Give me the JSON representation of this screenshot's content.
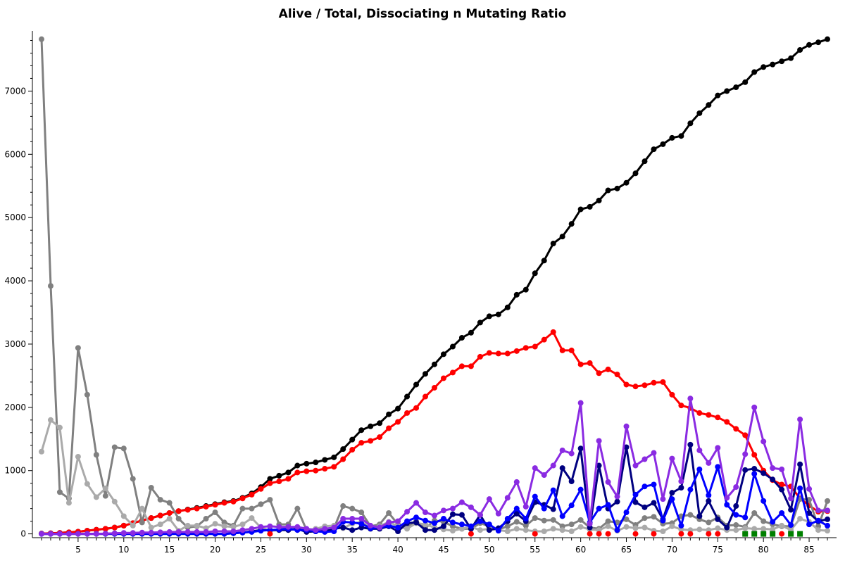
{
  "chart_data": {
    "type": "line",
    "title": "Alive / Total, Dissociating n Mutating Ratio",
    "xlabel": "",
    "ylabel": "",
    "xlim": [
      0,
      88
    ],
    "ylim": [
      -60,
      7950
    ],
    "x_ticks": [
      5,
      10,
      15,
      20,
      25,
      30,
      35,
      40,
      45,
      50,
      55,
      60,
      65,
      70,
      75,
      80,
      85
    ],
    "y_ticks": [
      0,
      1000,
      2000,
      3000,
      4000,
      5000,
      6000,
      7000
    ],
    "grid": false,
    "legend": "none",
    "series": [
      {
        "color": "#000000",
        "marker": "circle",
        "x": [
          1,
          2,
          3,
          4,
          5,
          6,
          7,
          8,
          9,
          10,
          11,
          12,
          13,
          14,
          15,
          16,
          17,
          18,
          19,
          20,
          21,
          22,
          23,
          24,
          25,
          26,
          27,
          28,
          29,
          30,
          31,
          32,
          33,
          34,
          35,
          36,
          37,
          38,
          39,
          40,
          41,
          42,
          43,
          44,
          45,
          46,
          47,
          48,
          49,
          50,
          51,
          52,
          53,
          54,
          55,
          56,
          57,
          58,
          59,
          60,
          61,
          62,
          63,
          64,
          65,
          66,
          67,
          68,
          69,
          70,
          71,
          72,
          73,
          74,
          75,
          76,
          77,
          78,
          79,
          80,
          81,
          82,
          83,
          84,
          85,
          86,
          87
        ],
        "y": [
          5,
          10,
          15,
          25,
          35,
          50,
          65,
          80,
          100,
          130,
          170,
          210,
          250,
          290,
          330,
          360,
          385,
          410,
          440,
          470,
          500,
          520,
          570,
          640,
          740,
          870,
          920,
          970,
          1080,
          1110,
          1130,
          1170,
          1210,
          1340,
          1490,
          1640,
          1700,
          1750,
          1890,
          1980,
          2170,
          2360,
          2530,
          2680,
          2840,
          2960,
          3100,
          3180,
          3340,
          3440,
          3470,
          3580,
          3780,
          3860,
          4120,
          4320,
          4590,
          4700,
          4900,
          5130,
          5170,
          5270,
          5430,
          5460,
          5550,
          5700,
          5890,
          6080,
          6160,
          6260,
          6290,
          6490,
          6650,
          6780,
          6930,
          7000,
          7060,
          7140,
          7300,
          7380,
          7420,
          7470,
          7520,
          7650,
          7730,
          7770,
          7820
        ]
      },
      {
        "color": "#ff0000",
        "marker": "circle",
        "x": [
          1,
          2,
          3,
          4,
          5,
          6,
          7,
          8,
          9,
          10,
          11,
          12,
          13,
          14,
          15,
          16,
          17,
          18,
          19,
          20,
          21,
          22,
          23,
          24,
          25,
          26,
          27,
          28,
          29,
          30,
          31,
          32,
          33,
          34,
          35,
          36,
          37,
          38,
          39,
          40,
          41,
          42,
          43,
          44,
          45,
          46,
          47,
          48,
          49,
          50,
          51,
          52,
          53,
          54,
          55,
          56,
          57,
          58,
          59,
          60,
          61,
          62,
          63,
          64,
          65,
          66,
          67,
          68,
          69,
          70,
          71,
          72,
          73,
          74,
          75,
          76,
          77,
          78,
          79,
          80,
          81,
          82,
          83,
          84,
          85,
          86,
          87
        ],
        "y": [
          5,
          10,
          15,
          25,
          35,
          50,
          65,
          80,
          100,
          130,
          170,
          210,
          250,
          290,
          330,
          360,
          380,
          400,
          430,
          460,
          490,
          510,
          560,
          620,
          710,
          800,
          830,
          870,
          970,
          990,
          1000,
          1030,
          1060,
          1180,
          1330,
          1440,
          1470,
          1530,
          1670,
          1770,
          1910,
          1990,
          2170,
          2310,
          2460,
          2550,
          2650,
          2650,
          2800,
          2860,
          2850,
          2850,
          2890,
          2940,
          2960,
          3070,
          3190,
          2900,
          2900,
          2680,
          2700,
          2540,
          2600,
          2520,
          2360,
          2330,
          2350,
          2390,
          2400,
          2200,
          2030,
          1990,
          1910,
          1880,
          1840,
          1770,
          1660,
          1560,
          1250,
          1000,
          850,
          780,
          750,
          560,
          450,
          350,
          360
        ]
      },
      {
        "color": "#808080",
        "marker": "circle",
        "x": [
          1,
          2,
          3,
          4,
          5,
          6,
          7,
          8,
          9,
          10,
          11,
          12,
          13,
          14,
          15,
          16,
          17,
          18,
          19,
          20,
          21,
          22,
          23,
          24,
          25,
          26,
          27,
          28,
          29,
          30,
          31,
          32,
          33,
          34,
          35,
          36,
          37,
          38,
          39,
          40,
          41,
          42,
          43,
          44,
          45,
          46,
          47,
          48,
          49,
          50,
          51,
          52,
          53,
          54,
          55,
          56,
          57,
          58,
          59,
          60,
          61,
          62,
          63,
          64,
          65,
          66,
          67,
          68,
          69,
          70,
          71,
          72,
          73,
          74,
          75,
          76,
          77,
          78,
          79,
          80,
          81,
          82,
          83,
          84,
          85,
          86,
          87
        ],
        "y": [
          7820,
          3920,
          660,
          560,
          2940,
          2200,
          1250,
          600,
          1370,
          1350,
          870,
          180,
          730,
          540,
          490,
          240,
          100,
          120,
          240,
          340,
          180,
          130,
          400,
          400,
          470,
          540,
          150,
          150,
          400,
          60,
          60,
          40,
          90,
          440,
          400,
          340,
          120,
          150,
          330,
          150,
          100,
          200,
          90,
          210,
          190,
          120,
          80,
          80,
          170,
          120,
          70,
          120,
          190,
          130,
          250,
          210,
          220,
          120,
          150,
          220,
          100,
          80,
          200,
          180,
          230,
          140,
          250,
          270,
          160,
          170,
          280,
          300,
          230,
          180,
          260,
          130,
          140,
          110,
          330,
          200,
          150,
          120,
          120,
          550,
          540,
          120,
          520
        ]
      },
      {
        "color": "#aaaaaa",
        "marker": "circle",
        "x": [
          1,
          2,
          3,
          4,
          5,
          6,
          7,
          8,
          9,
          10,
          11,
          12,
          13,
          14,
          15,
          16,
          17,
          18,
          19,
          20,
          21,
          22,
          23,
          24,
          25,
          26,
          27,
          28,
          29,
          30,
          31,
          32,
          33,
          34,
          35,
          36,
          37,
          38,
          39,
          40,
          41,
          42,
          43,
          44,
          45,
          46,
          47,
          48,
          49,
          50,
          51,
          52,
          53,
          54,
          55,
          56,
          57,
          58,
          59,
          60,
          61,
          62,
          63,
          64,
          65,
          66,
          67,
          68,
          69,
          70,
          71,
          72,
          73,
          74,
          75,
          76,
          77,
          78,
          79,
          80,
          81,
          82,
          83,
          84,
          85,
          86,
          87
        ],
        "y": [
          1300,
          1800,
          1680,
          490,
          1220,
          790,
          580,
          720,
          510,
          280,
          130,
          400,
          100,
          150,
          240,
          50,
          130,
          130,
          90,
          160,
          120,
          110,
          150,
          250,
          100,
          50,
          60,
          100,
          90,
          60,
          80,
          120,
          130,
          90,
          160,
          190,
          90,
          120,
          190,
          120,
          80,
          170,
          150,
          100,
          70,
          50,
          80,
          110,
          60,
          80,
          60,
          40,
          80,
          60,
          40,
          40,
          80,
          60,
          40,
          110,
          70,
          60,
          120,
          50,
          110,
          90,
          100,
          50,
          40,
          120,
          70,
          60,
          70,
          60,
          90,
          60,
          60,
          90,
          80,
          80,
          70,
          130,
          60,
          240,
          190,
          60,
          50
        ]
      },
      {
        "color": "#000080",
        "marker": "circle",
        "x": [
          1,
          2,
          3,
          4,
          5,
          6,
          7,
          8,
          9,
          10,
          11,
          12,
          13,
          14,
          15,
          16,
          17,
          18,
          19,
          20,
          21,
          22,
          23,
          24,
          25,
          26,
          27,
          28,
          29,
          30,
          31,
          32,
          33,
          34,
          35,
          36,
          37,
          38,
          39,
          40,
          41,
          42,
          43,
          44,
          45,
          46,
          47,
          48,
          49,
          50,
          51,
          52,
          53,
          54,
          55,
          56,
          57,
          58,
          59,
          60,
          61,
          62,
          63,
          64,
          65,
          66,
          67,
          68,
          69,
          70,
          71,
          72,
          73,
          74,
          75,
          76,
          77,
          78,
          79,
          80,
          81,
          82,
          83,
          84,
          85,
          86,
          87
        ],
        "y": [
          0,
          0,
          0,
          0,
          0,
          0,
          0,
          0,
          0,
          0,
          0,
          0,
          0,
          0,
          0,
          0,
          0,
          0,
          0,
          0,
          0,
          10,
          20,
          40,
          60,
          60,
          60,
          60,
          80,
          30,
          40,
          40,
          80,
          100,
          60,
          100,
          80,
          80,
          120,
          40,
          170,
          180,
          60,
          60,
          120,
          310,
          300,
          80,
          300,
          60,
          90,
          200,
          320,
          200,
          500,
          460,
          390,
          1040,
          830,
          1350,
          100,
          1080,
          400,
          510,
          1370,
          500,
          420,
          490,
          230,
          650,
          730,
          1410,
          280,
          520,
          230,
          100,
          440,
          1010,
          1030,
          960,
          860,
          700,
          380,
          1100,
          330,
          200,
          230
        ]
      },
      {
        "color": "#0000ff",
        "marker": "circle",
        "x": [
          1,
          2,
          3,
          4,
          5,
          6,
          7,
          8,
          9,
          10,
          11,
          12,
          13,
          14,
          15,
          16,
          17,
          18,
          19,
          20,
          21,
          22,
          23,
          24,
          25,
          26,
          27,
          28,
          29,
          30,
          31,
          32,
          33,
          34,
          35,
          36,
          37,
          38,
          39,
          40,
          41,
          42,
          43,
          44,
          45,
          46,
          47,
          48,
          49,
          50,
          51,
          52,
          53,
          54,
          55,
          56,
          57,
          58,
          59,
          60,
          61,
          62,
          63,
          64,
          65,
          66,
          67,
          68,
          69,
          70,
          71,
          72,
          73,
          74,
          75,
          76,
          77,
          78,
          79,
          80,
          81,
          82,
          83,
          84,
          85,
          86,
          87
        ],
        "y": [
          0,
          0,
          0,
          0,
          0,
          0,
          0,
          0,
          0,
          0,
          0,
          0,
          0,
          0,
          0,
          0,
          0,
          0,
          0,
          0,
          0,
          10,
          20,
          30,
          50,
          60,
          70,
          80,
          60,
          60,
          40,
          30,
          40,
          190,
          180,
          160,
          90,
          100,
          130,
          100,
          200,
          260,
          210,
          170,
          240,
          180,
          150,
          120,
          200,
          150,
          50,
          240,
          400,
          240,
          590,
          400,
          690,
          280,
          450,
          700,
          180,
          400,
          460,
          60,
          340,
          620,
          750,
          780,
          210,
          550,
          130,
          700,
          1020,
          610,
          1060,
          460,
          300,
          260,
          950,
          520,
          190,
          330,
          140,
          720,
          150,
          210,
          130
        ]
      },
      {
        "color": "#8a2be2",
        "marker": "circle",
        "x": [
          1,
          2,
          3,
          4,
          5,
          6,
          7,
          8,
          9,
          10,
          11,
          12,
          13,
          14,
          15,
          16,
          17,
          18,
          19,
          20,
          21,
          22,
          23,
          24,
          25,
          26,
          27,
          28,
          29,
          30,
          31,
          32,
          33,
          34,
          35,
          36,
          37,
          38,
          39,
          40,
          41,
          42,
          43,
          44,
          45,
          46,
          47,
          48,
          49,
          50,
          51,
          52,
          53,
          54,
          55,
          56,
          57,
          58,
          59,
          60,
          61,
          62,
          63,
          64,
          65,
          66,
          67,
          68,
          69,
          70,
          71,
          72,
          73,
          74,
          75,
          76,
          77,
          78,
          79,
          80,
          81,
          82,
          83,
          84,
          85,
          86,
          87
        ],
        "y": [
          0,
          0,
          0,
          0,
          0,
          0,
          0,
          5,
          10,
          15,
          15,
          20,
          20,
          25,
          30,
          30,
          30,
          30,
          30,
          40,
          40,
          40,
          60,
          80,
          110,
          120,
          110,
          110,
          110,
          80,
          60,
          80,
          100,
          240,
          240,
          240,
          130,
          100,
          180,
          200,
          350,
          490,
          340,
          290,
          370,
          400,
          500,
          420,
          300,
          550,
          320,
          570,
          820,
          430,
          1040,
          930,
          1080,
          1320,
          1270,
          2070,
          160,
          1470,
          820,
          590,
          1700,
          1080,
          1180,
          1280,
          550,
          1190,
          830,
          2140,
          1320,
          1120,
          1360,
          570,
          740,
          1260,
          2000,
          1460,
          1040,
          1020,
          560,
          1810,
          710,
          370,
          370
        ]
      },
      {
        "color": "#ff0000",
        "marker": "circle",
        "line": false,
        "x": [
          26,
          48,
          55,
          61,
          62,
          63,
          66,
          68,
          71,
          72,
          74,
          75,
          78,
          80,
          81,
          82
        ],
        "y": [
          0,
          0,
          0,
          0,
          0,
          0,
          0,
          0,
          0,
          0,
          0,
          0,
          0,
          0,
          0,
          0
        ]
      },
      {
        "color": "#008000",
        "marker": "square",
        "line": false,
        "x": [
          78,
          79,
          80,
          81,
          83,
          84
        ],
        "y": [
          0,
          0,
          0,
          0,
          0,
          0
        ]
      }
    ]
  }
}
